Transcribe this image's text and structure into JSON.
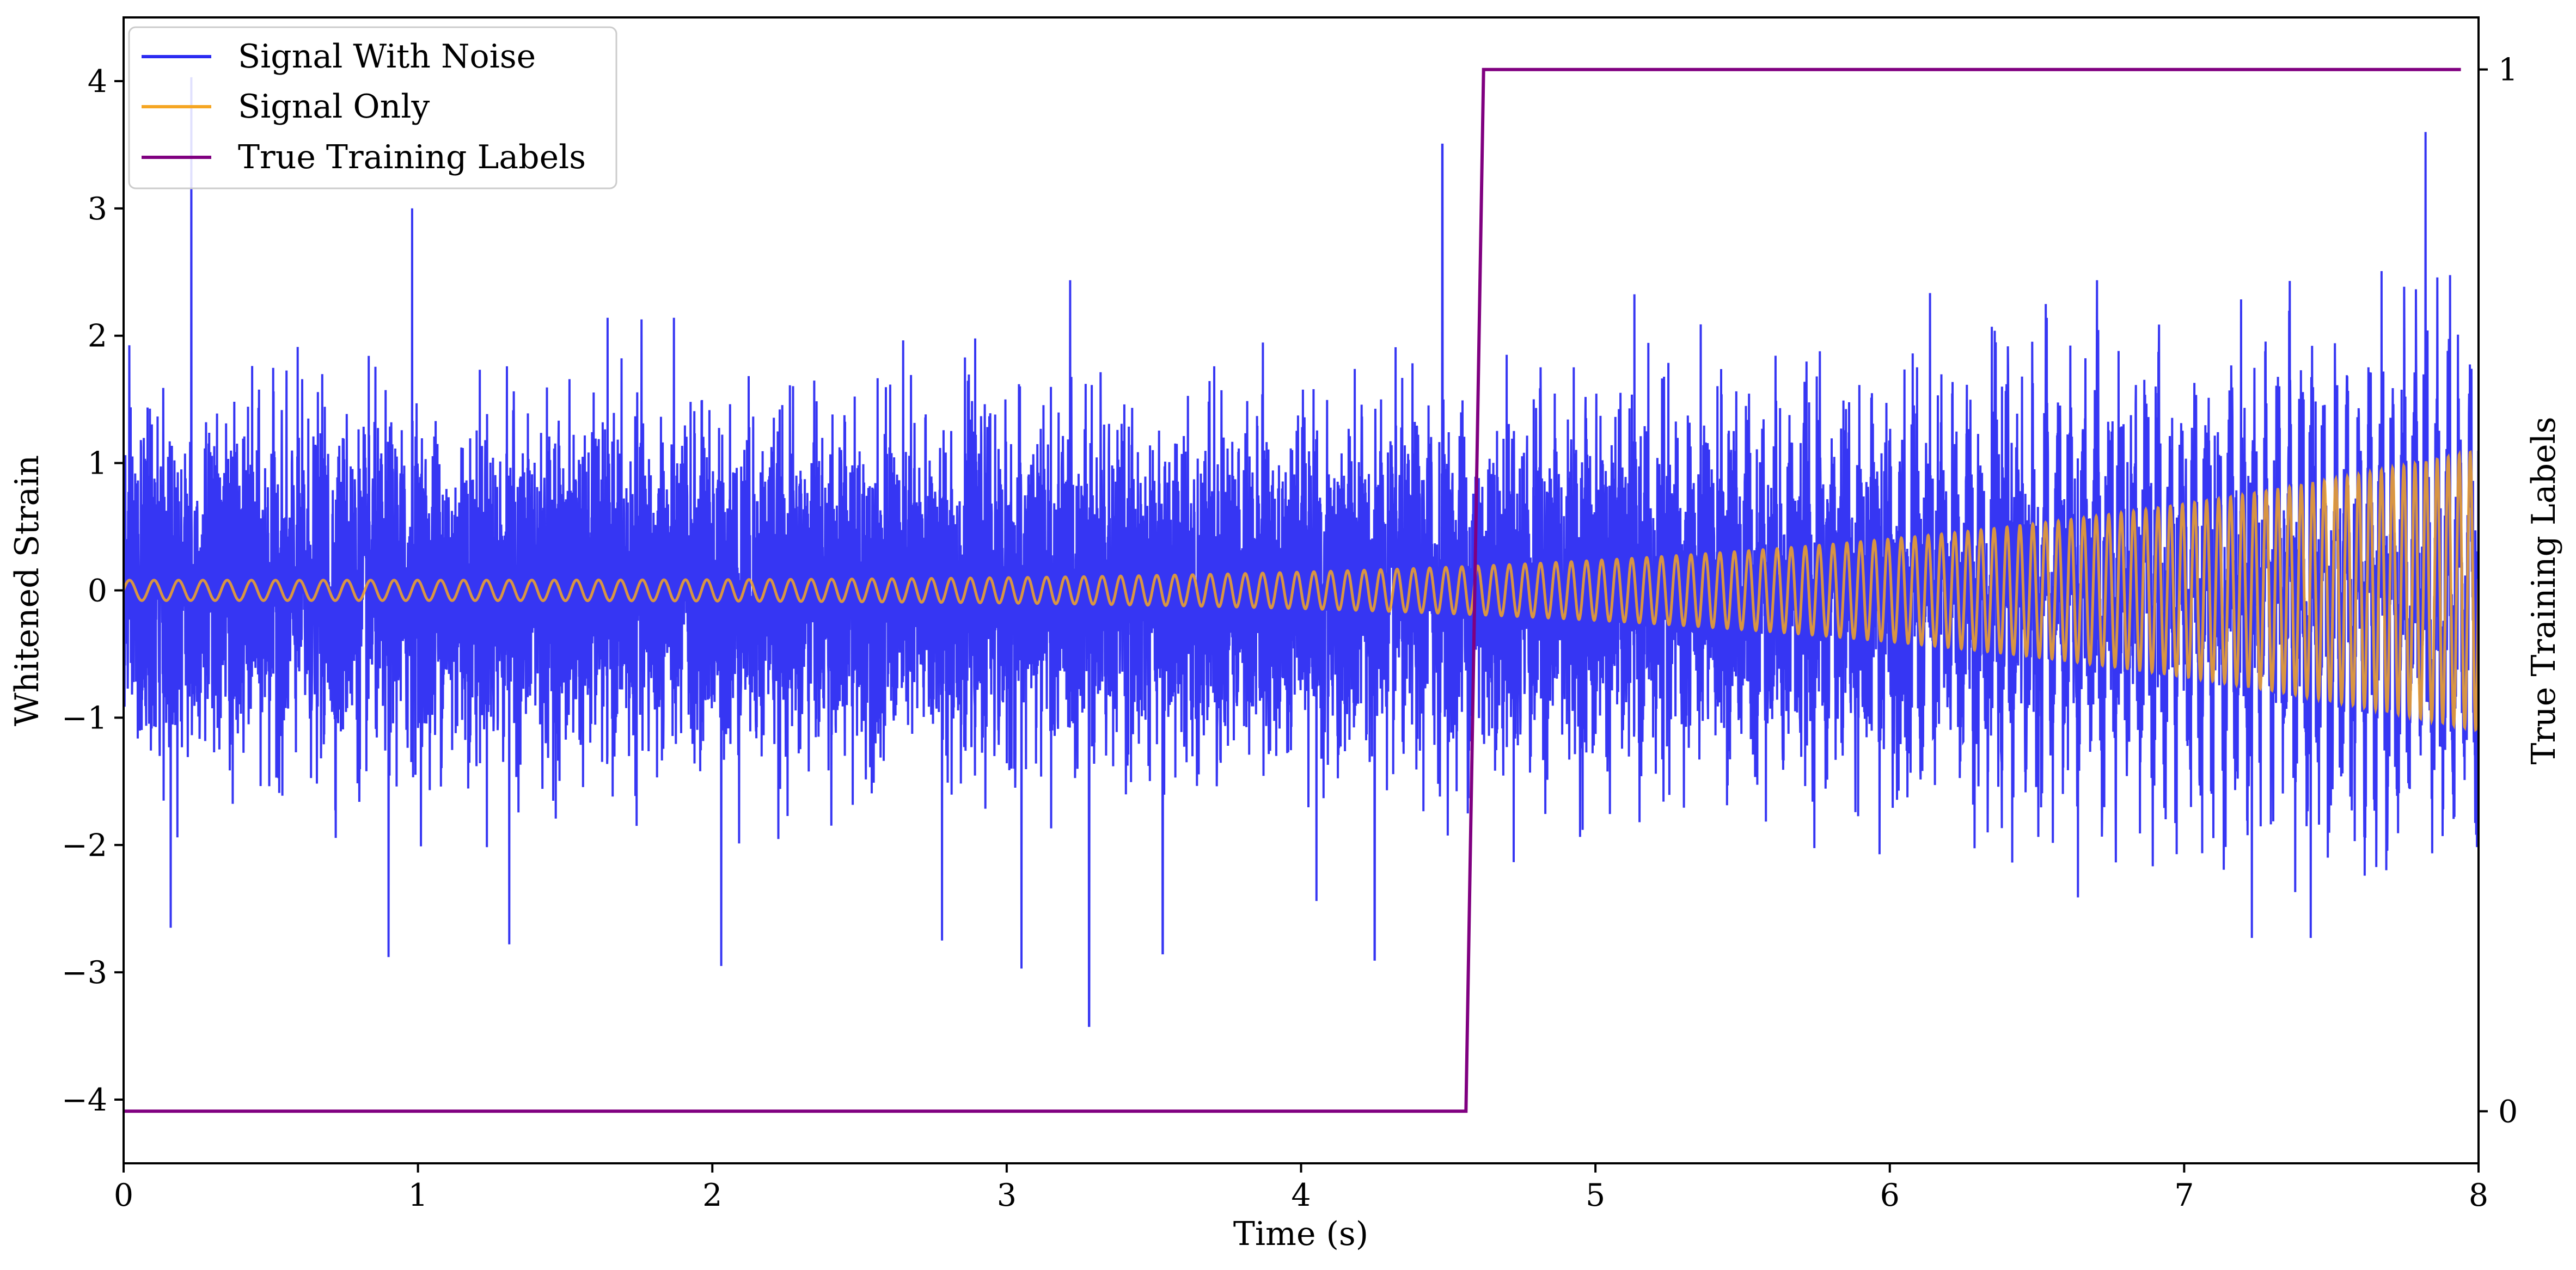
{
  "chart_data": {
    "type": "line",
    "title": "",
    "xlabel": "Time (s)",
    "ylabel": "Whitened Strain",
    "y2label": "True Training Labels",
    "xlim": [
      0,
      8
    ],
    "ylim": [
      -4.5,
      4.5
    ],
    "y2lim": [
      -0.05,
      1.05
    ],
    "xticks": [
      0,
      1,
      2,
      3,
      4,
      5,
      6,
      7,
      8
    ],
    "yticks": [
      -4,
      -3,
      -2,
      -1,
      0,
      1,
      2,
      3,
      4
    ],
    "y2ticks": [
      0,
      1
    ],
    "grid": false,
    "legend_position": "upper-left",
    "series": [
      {
        "name": "Signal With Noise",
        "color": "#2b2bf2",
        "axis": "left",
        "description_values": {
          "noise_std": 0.62,
          "spikes": [
            [
              0.23,
              4.03
            ],
            [
              0.98,
              3.0
            ],
            [
              0.9,
              -2.88
            ],
            [
              0.16,
              -2.65
            ],
            [
              2.03,
              -2.95
            ],
            [
              3.28,
              -3.42
            ],
            [
              3.05,
              -2.97
            ],
            [
              4.48,
              3.5
            ],
            [
              4.25,
              -2.9
            ],
            [
              7.82,
              3.6
            ],
            [
              7.23,
              -2.73
            ],
            [
              7.43,
              -2.73
            ],
            [
              1.31,
              -2.78
            ],
            [
              2.78,
              -2.75
            ],
            [
              3.53,
              -2.85
            ]
          ]
        }
      },
      {
        "name": "Signal Only",
        "color": "#f5a623",
        "axis": "left",
        "amplitude_start": 0.08,
        "amplitude_end": 1.1,
        "freq_start_hz": 12,
        "freq_end_hz": 27
      },
      {
        "name": "True Training Labels",
        "color": "#800080",
        "axis": "right",
        "x": [
          0,
          4.56,
          4.62,
          7.94
        ],
        "y": [
          0,
          0,
          1,
          1
        ]
      }
    ]
  }
}
